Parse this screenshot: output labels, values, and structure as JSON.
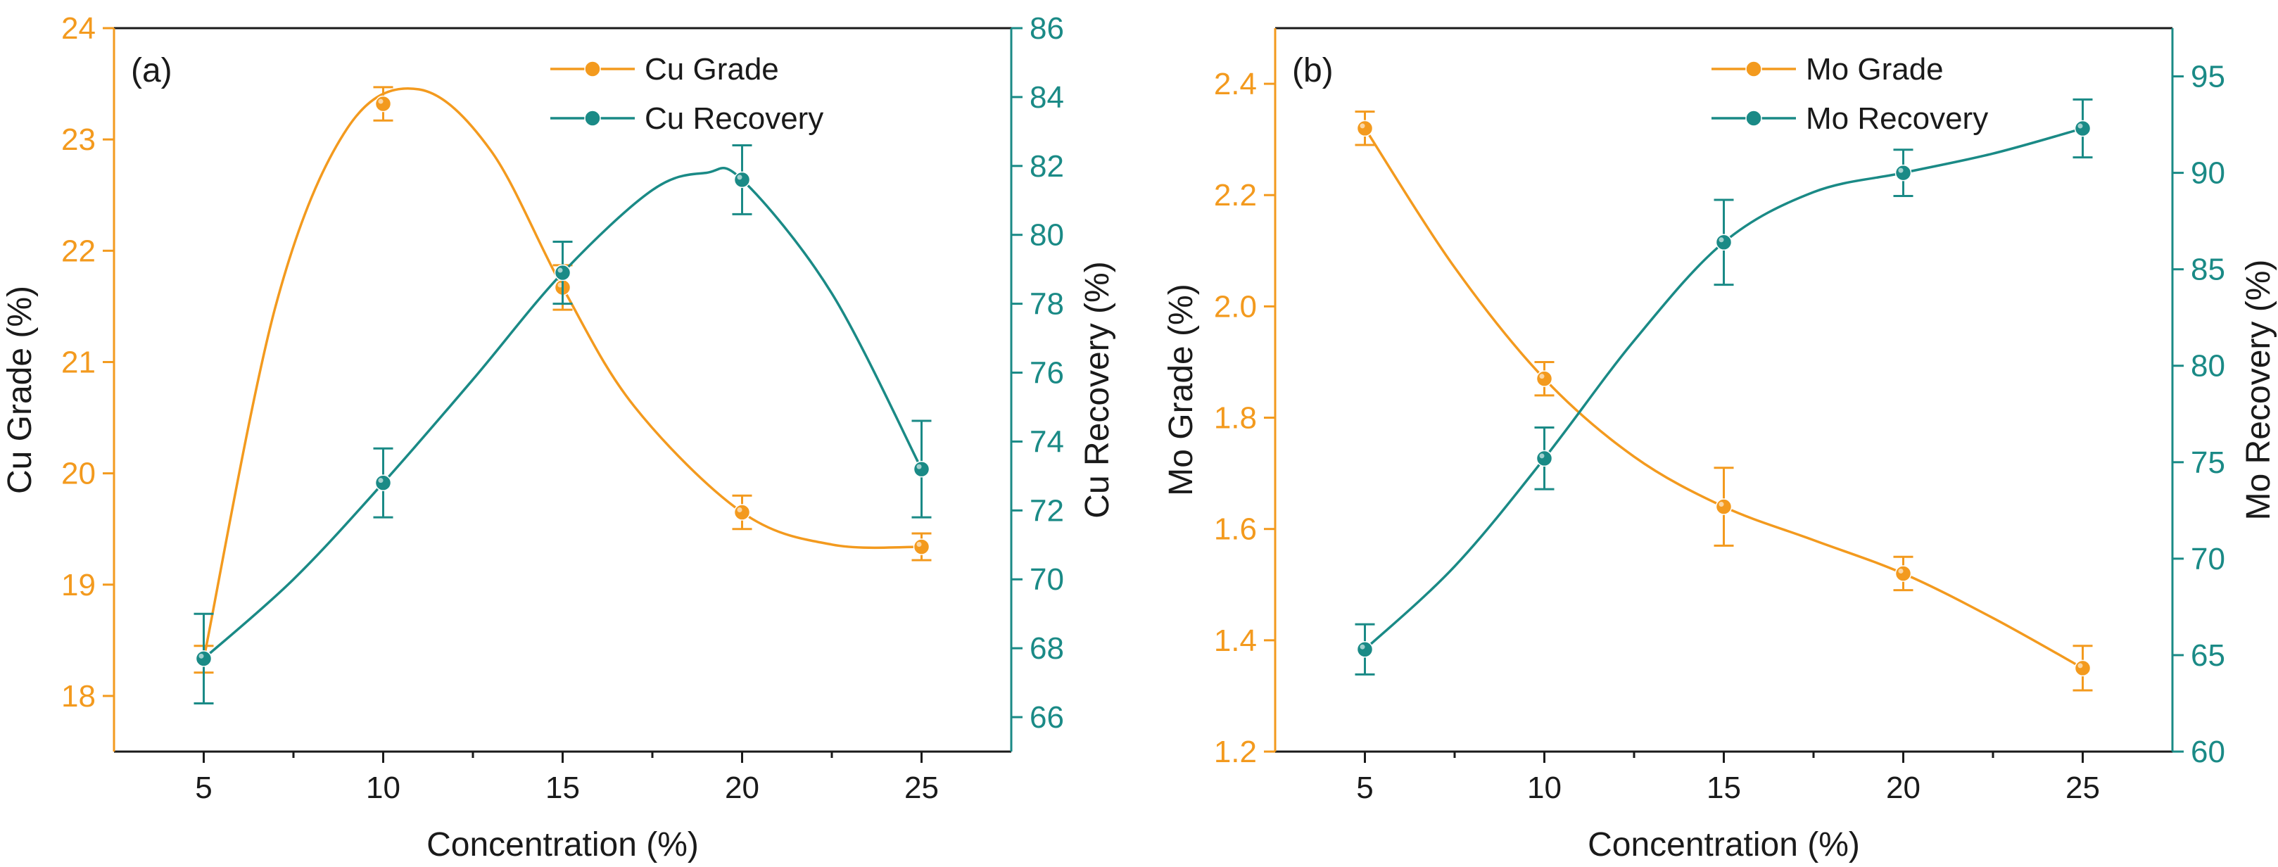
{
  "colors": {
    "grade": "#F39A1E",
    "recovery": "#1A8A86",
    "frame": "#1a1a1a"
  },
  "chart_data": [
    {
      "type": "line",
      "panel_label": "(a)",
      "xlabel": "Concentration (%)",
      "ylabel_left": "Cu  Grade (%)",
      "ylabel_right": "Cu  Recovery (%)",
      "xlim": [
        2.5,
        27.5
      ],
      "ylim_left": [
        17.5,
        24
      ],
      "ylim_right": [
        65,
        86
      ],
      "x_ticks": [
        5,
        10,
        15,
        20,
        25
      ],
      "x_tick_labels": [
        "5",
        "10",
        "15",
        "20",
        "25"
      ],
      "y_left_ticks": [
        18,
        19,
        20,
        21,
        22,
        23,
        24
      ],
      "y_left_tick_labels": [
        "18",
        "19",
        "20",
        "21",
        "22",
        "23",
        "24"
      ],
      "y_right_ticks": [
        66,
        68,
        70,
        72,
        74,
        76,
        78,
        80,
        82,
        84,
        86
      ],
      "y_right_tick_labels": [
        "66",
        "68",
        "70",
        "72",
        "74",
        "76",
        "78",
        "80",
        "82",
        "84",
        "86"
      ],
      "legend": [
        "Cu  Grade",
        "Cu  Recovery"
      ],
      "series": [
        {
          "name": "Cu  Grade",
          "axis": "left",
          "color_key": "grade",
          "x": [
            5,
            10,
            15,
            20,
            25
          ],
          "values": [
            18.33,
            23.32,
            21.67,
            19.65,
            19.34
          ],
          "errors": [
            0.12,
            0.15,
            0.2,
            0.15,
            0.12
          ],
          "curve": [
            [
              5,
              18.33
            ],
            [
              7,
              21.5
            ],
            [
              9,
              23.1
            ],
            [
              11,
              23.45
            ],
            [
              13,
              22.9
            ],
            [
              15,
              21.67
            ],
            [
              17,
              20.6
            ],
            [
              20,
              19.65
            ],
            [
              22.5,
              19.36
            ],
            [
              25,
              19.34
            ]
          ]
        },
        {
          "name": "Cu  Recovery",
          "axis": "right",
          "color_key": "recovery",
          "x": [
            5,
            10,
            15,
            20,
            25
          ],
          "values": [
            67.7,
            72.8,
            78.9,
            81.6,
            73.2
          ],
          "errors": [
            1.3,
            1.0,
            0.9,
            1.0,
            1.4
          ],
          "curve": [
            [
              5,
              67.7
            ],
            [
              7.5,
              70.0
            ],
            [
              10,
              72.8
            ],
            [
              12.5,
              75.8
            ],
            [
              15,
              78.9
            ],
            [
              17.5,
              81.3
            ],
            [
              19,
              81.8
            ],
            [
              20,
              81.6
            ],
            [
              22.5,
              78.3
            ],
            [
              25,
              73.2
            ]
          ]
        }
      ]
    },
    {
      "type": "line",
      "panel_label": "(b)",
      "xlabel": "Concentration (%)",
      "ylabel_left": "Mo  Grade (%)",
      "ylabel_right": "Mo  Recovery (%)",
      "xlim": [
        2.5,
        27.5
      ],
      "ylim_left": [
        1.2,
        2.5
      ],
      "ylim_right": [
        60,
        97.5
      ],
      "x_ticks": [
        5,
        10,
        15,
        20,
        25
      ],
      "x_tick_labels": [
        "5",
        "10",
        "15",
        "20",
        "25"
      ],
      "y_left_ticks": [
        1.2,
        1.4,
        1.6,
        1.8,
        2.0,
        2.2,
        2.4
      ],
      "y_left_tick_labels": [
        "1.2",
        "1.4",
        "1.6",
        "1.8",
        "2.0",
        "2.2",
        "2.4"
      ],
      "y_right_ticks": [
        60,
        65,
        70,
        75,
        80,
        85,
        90,
        95
      ],
      "y_right_tick_labels": [
        "60",
        "65",
        "70",
        "75",
        "80",
        "85",
        "90",
        "95"
      ],
      "legend": [
        "Mo  Grade",
        "Mo  Recovery"
      ],
      "series": [
        {
          "name": "Mo  Grade",
          "axis": "left",
          "color_key": "grade",
          "x": [
            5,
            10,
            15,
            20,
            25
          ],
          "values": [
            2.32,
            1.87,
            1.64,
            1.52,
            1.35
          ],
          "errors": [
            0.03,
            0.03,
            0.07,
            0.03,
            0.04
          ],
          "curve": [
            [
              5,
              2.32
            ],
            [
              7.5,
              2.07
            ],
            [
              10,
              1.87
            ],
            [
              12.5,
              1.73
            ],
            [
              15,
              1.64
            ],
            [
              17.5,
              1.58
            ],
            [
              20,
              1.52
            ],
            [
              22.5,
              1.44
            ],
            [
              25,
              1.35
            ]
          ]
        },
        {
          "name": "Mo  Recovery",
          "axis": "right",
          "color_key": "recovery",
          "x": [
            5,
            10,
            15,
            20,
            25
          ],
          "values": [
            65.3,
            75.2,
            86.4,
            90.0,
            92.3
          ],
          "errors": [
            1.3,
            1.6,
            2.2,
            1.2,
            1.5
          ],
          "curve": [
            [
              5,
              65.3
            ],
            [
              7.5,
              69.6
            ],
            [
              10,
              75.2
            ],
            [
              12.5,
              81.3
            ],
            [
              15,
              86.4
            ],
            [
              17.5,
              89.0
            ],
            [
              20,
              90.0
            ],
            [
              22.5,
              91.0
            ],
            [
              25,
              92.3
            ]
          ]
        }
      ]
    }
  ]
}
